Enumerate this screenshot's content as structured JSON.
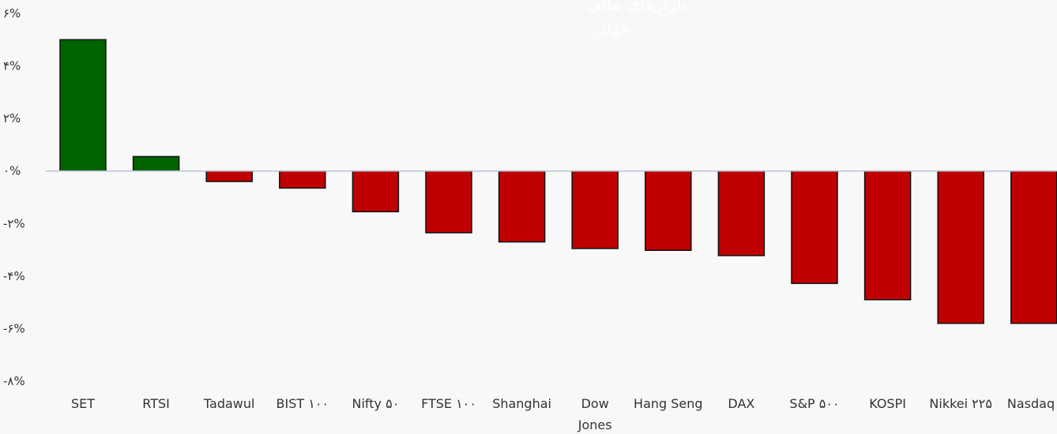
{
  "chart_data": {
    "type": "bar",
    "title_lines": [
      "بازارهای مالی",
      "جهان"
    ],
    "categories": [
      "SET",
      "RTSI",
      "Tadawul",
      "BIST ۱۰۰",
      "Nifty ۵۰",
      "FTSE ۱۰۰",
      "Shanghai",
      "Dow Jones",
      "Hang Seng",
      "DAX",
      "S&P ۵۰۰",
      "KOSPI",
      "Nikkei ۲۲۵",
      "Nasdaq"
    ],
    "values": [
      5.0,
      0.55,
      -0.4,
      -0.65,
      -1.55,
      -2.35,
      -2.7,
      -2.95,
      -3.02,
      -3.22,
      -4.28,
      -4.9,
      -5.8,
      -5.8
    ],
    "ylim": [
      -8,
      6
    ],
    "yticks": [
      6,
      4,
      2,
      0,
      -2,
      -4,
      -6,
      -8
    ],
    "ytick_labels": [
      "۶%",
      "۴%",
      "۲%",
      "۰%",
      "-۲%",
      "-۴%",
      "-۶%",
      "-۸%"
    ],
    "colors": {
      "positive": "#006400",
      "negative": "#c00000",
      "zero_line": "#b8c4d6",
      "bar_border": "#111111",
      "title": "#ffffff"
    },
    "grid": false,
    "legend": "none"
  }
}
